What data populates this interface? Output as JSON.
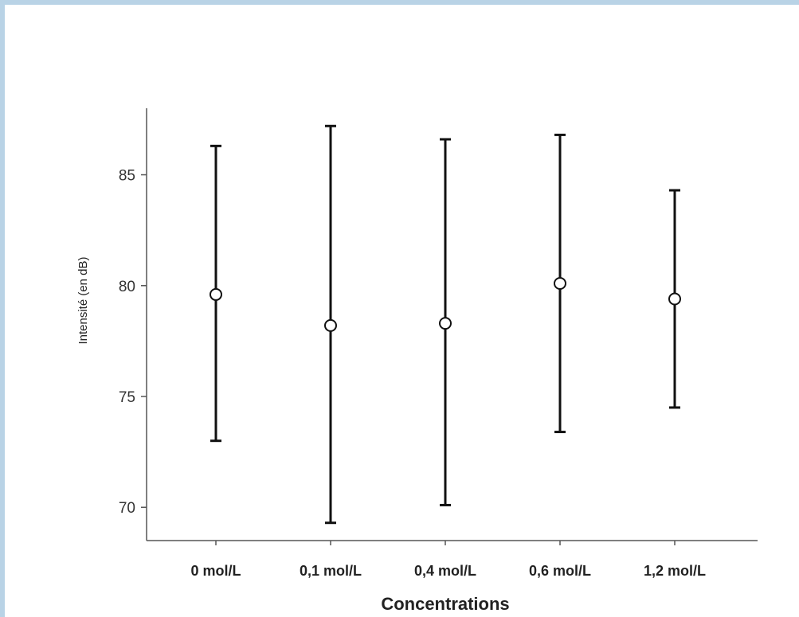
{
  "chart_data": {
    "type": "errorbar",
    "title": "",
    "xlabel": "Concentrations",
    "ylabel": "Intensité (en dB)",
    "categories": [
      "0 mol/L",
      "0,1 mol/L",
      "0,4 mol/L",
      "0,6 mol/L",
      "1,2 mol/L"
    ],
    "means": [
      79.6,
      78.2,
      78.3,
      80.1,
      79.4
    ],
    "lower": [
      73.0,
      69.3,
      70.1,
      73.4,
      74.5
    ],
    "upper": [
      86.3,
      87.2,
      86.6,
      86.8,
      84.3
    ],
    "ylim": [
      68.5,
      88.0
    ],
    "yticks": [
      70,
      75,
      80,
      85
    ],
    "grid": false,
    "legend": "none"
  }
}
